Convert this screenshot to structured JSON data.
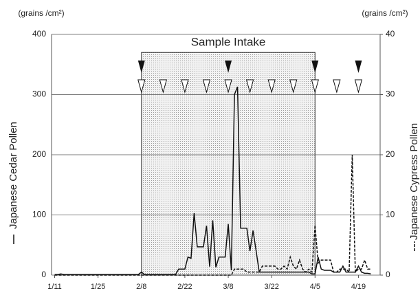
{
  "chart_data": {
    "type": "line",
    "y_unit": "(grains /cm²)",
    "y2_unit": "(grains /cm²)",
    "ylabel": "Japanese Cedar Pollen",
    "y2label": "Japanese Cypress Pollen",
    "annotation": "Sample Intake",
    "shaded_range": [
      39,
      95
    ],
    "shaded_top": 370,
    "filled_arrows": [
      39,
      67,
      95,
      109
    ],
    "open_arrows": [
      39,
      46,
      53,
      60,
      67,
      74,
      81,
      88,
      95,
      102,
      109
    ],
    "xlim": [
      10,
      116
    ],
    "xticks": [
      {
        "value": 11,
        "label": "1/11"
      },
      {
        "value": 25,
        "label": "1/25"
      },
      {
        "value": 39,
        "label": "2/8"
      },
      {
        "value": 53,
        "label": "2/22"
      },
      {
        "value": 67,
        "label": "3/8"
      },
      {
        "value": 81,
        "label": "3/22"
      },
      {
        "value": 95,
        "label": "4/5"
      },
      {
        "value": 109,
        "label": "4/19"
      }
    ],
    "ylim": [
      0,
      400
    ],
    "yticks": [
      0,
      100,
      200,
      300,
      400
    ],
    "y2lim": [
      0,
      40
    ],
    "y2ticks": [
      0,
      10,
      20,
      30,
      40
    ],
    "grid": true,
    "x": [
      11,
      12,
      13,
      14,
      15,
      16,
      17,
      18,
      19,
      20,
      21,
      22,
      23,
      24,
      25,
      26,
      27,
      28,
      29,
      30,
      31,
      32,
      33,
      34,
      35,
      36,
      37,
      38,
      39,
      40,
      41,
      42,
      43,
      44,
      45,
      46,
      47,
      48,
      49,
      50,
      51,
      52,
      53,
      54,
      55,
      56,
      57,
      58,
      59,
      60,
      61,
      62,
      63,
      64,
      65,
      66,
      67,
      68,
      69,
      70,
      71,
      72,
      73,
      74,
      75,
      76,
      77,
      78,
      79,
      80,
      81,
      82,
      83,
      84,
      85,
      86,
      87,
      88,
      89,
      90,
      91,
      92,
      93,
      94,
      95,
      96,
      97,
      98,
      99,
      100,
      101,
      102,
      103,
      104,
      105,
      106,
      107,
      108,
      109,
      110,
      111,
      112,
      113
    ],
    "series": [
      {
        "name": "Japanese Cedar Pollen",
        "color": "#111111",
        "dash": false,
        "values": [
          1,
          1,
          2,
          1,
          1,
          1,
          1,
          1,
          1,
          1,
          1,
          1,
          1,
          1,
          1,
          1,
          1,
          1,
          1,
          1,
          1,
          1,
          1,
          1,
          1,
          1,
          1,
          1,
          5,
          1,
          1,
          1,
          1,
          1,
          1,
          1,
          1,
          1,
          1,
          1,
          10,
          10,
          10,
          30,
          28,
          103,
          47,
          47,
          47,
          82,
          14,
          91,
          13,
          30,
          30,
          30,
          85,
          8,
          300,
          313,
          78,
          78,
          78,
          40,
          74,
          40,
          5,
          5,
          5,
          5,
          5,
          5,
          5,
          5,
          5,
          5,
          5,
          5,
          5,
          5,
          5,
          5,
          5,
          2,
          2,
          30,
          10,
          8,
          8,
          8,
          5,
          5,
          5,
          15,
          5,
          5,
          5,
          5,
          15,
          5,
          3,
          3,
          2
        ]
      },
      {
        "name": "Japanese Cypress Pollen",
        "color": "#111111",
        "dash": true,
        "axis": "y2",
        "values": [
          0,
          0,
          0,
          0,
          0,
          0,
          0,
          0,
          0,
          0,
          0,
          0,
          0,
          0,
          0,
          0,
          0,
          0,
          0,
          0,
          0,
          0,
          0,
          0,
          0,
          0,
          0,
          0,
          0,
          0,
          0,
          0,
          0,
          0,
          0,
          0,
          0,
          0,
          0,
          0,
          0,
          0,
          0,
          0,
          0,
          0,
          0,
          0,
          0,
          0,
          0,
          0,
          0,
          0,
          0,
          0,
          0,
          0,
          1,
          1,
          1,
          1,
          0.5,
          0.5,
          0.5,
          0.5,
          0.5,
          1.5,
          1.5,
          1.5,
          1.5,
          1.5,
          1,
          1,
          1.5,
          1,
          3,
          1.5,
          1,
          2.5,
          1,
          0.5,
          1,
          0.5,
          8.3,
          2,
          2.5,
          2.5,
          2.5,
          2.5,
          0.5,
          0.5,
          1,
          1,
          1,
          0.5,
          20,
          0.5,
          1,
          1,
          2.5,
          1,
          1
        ]
      }
    ]
  }
}
